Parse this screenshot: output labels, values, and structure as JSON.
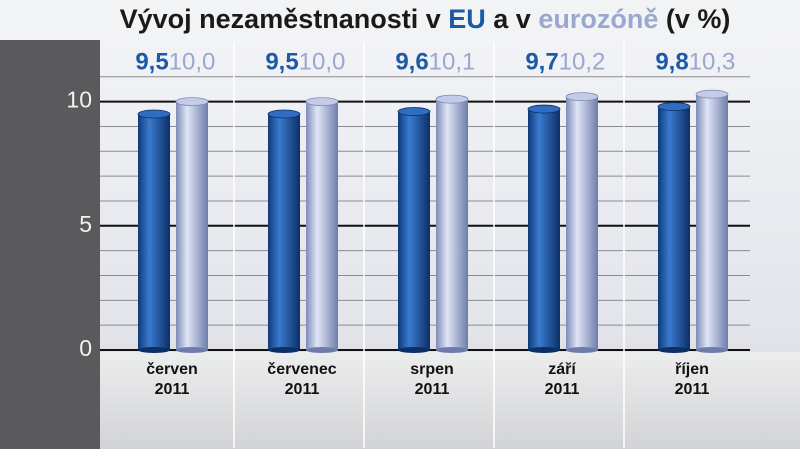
{
  "chart_data": {
    "type": "bar",
    "title": "Vývoj nezaměstnanosti v EU a v eurozóně (v %)",
    "categories": [
      "červen",
      "červenec",
      "srpen",
      "září",
      "říjen"
    ],
    "years": [
      "2011",
      "2011",
      "2011",
      "2011",
      "2011"
    ],
    "series": [
      {
        "name": "EU",
        "color": "#1d5aa6",
        "values": [
          9.5,
          9.5,
          9.6,
          9.7,
          9.8
        ],
        "value_labels": [
          "9,5",
          "9,5",
          "9,6",
          "9,7",
          "9,8"
        ]
      },
      {
        "name": "eurozóně",
        "color": "#9aa8d0",
        "values": [
          10.0,
          10.0,
          10.1,
          10.2,
          10.3
        ],
        "value_labels": [
          "10,0",
          "10,0",
          "10,1",
          "10,2",
          "10,3"
        ]
      }
    ],
    "ylim": [
      0,
      12.4
    ],
    "yticks": [
      0,
      5,
      10
    ],
    "minor_yticks": [
      1,
      2,
      3,
      4,
      6,
      7,
      8,
      9,
      11
    ],
    "grid": true
  }
}
